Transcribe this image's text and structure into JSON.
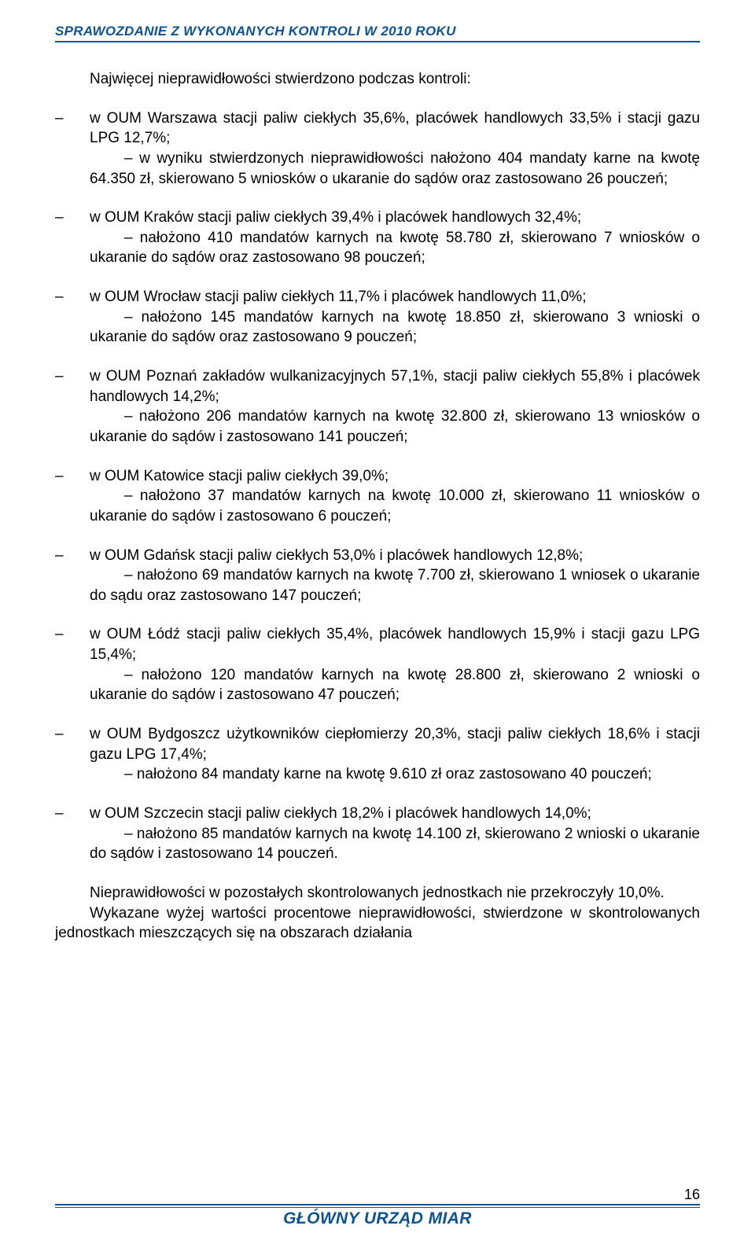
{
  "header": {
    "title": "SPRAWOZDANIE Z WYKONANYCH KONTROLI W 2010 ROKU"
  },
  "section_heading": "Najwięcej nieprawidłowości stwierdzono podczas kontroli:",
  "items": [
    {
      "main": "w OUM Warszawa  stacji paliw ciekłych 35,6%, placówek handlowych 33,5% i stacji gazu LPG 12,7%;",
      "sub": "– w wyniku stwierdzonych nieprawidłowości nałożono 404 mandaty karne na kwotę 64.350 zł, skierowano 5 wniosków o ukaranie do sądów oraz zastosowano 26 pouczeń;"
    },
    {
      "main": "w OUM Kraków  stacji paliw ciekłych 39,4% i placówek handlowych 32,4%;",
      "sub": "– nałożono 410 mandatów karnych na kwotę 58.780 zł, skierowano 7 wniosków o ukaranie do sądów oraz zastosowano 98 pouczeń;"
    },
    {
      "main": "w OUM Wrocław stacji paliw ciekłych 11,7% i placówek handlowych 11,0%;",
      "sub": "– nałożono 145 mandatów karnych na kwotę 18.850 zł, skierowano 3 wnioski o ukaranie do sądów oraz zastosowano 9 pouczeń;"
    },
    {
      "main": "w OUM Poznań zakładów wulkanizacyjnych 57,1%, stacji paliw ciekłych 55,8% i placówek handlowych 14,2%;",
      "sub": "– nałożono 206 mandatów karnych na kwotę 32.800 zł, skierowano 13 wniosków o ukaranie do sądów i zastosowano 141 pouczeń;"
    },
    {
      "main": "w OUM Katowice stacji paliw ciekłych 39,0%;",
      "sub": "– nałożono 37 mandatów karnych na kwotę 10.000 zł, skierowano 11 wniosków o ukaranie do sądów i zastosowano 6 pouczeń;"
    },
    {
      "main": "w OUM Gdańsk stacji paliw ciekłych 53,0% i placówek handlowych 12,8%;",
      "sub": "– nałożono 69 mandatów karnych na kwotę 7.700 zł, skierowano 1 wniosek o ukaranie do sądu oraz zastosowano 147 pouczeń;"
    },
    {
      "main": "w OUM Łódź stacji paliw ciekłych 35,4%, placówek handlowych 15,9% i stacji gazu LPG 15,4%;",
      "sub": "– nałożono 120 mandatów karnych na kwotę 28.800 zł, skierowano 2 wnioski o ukaranie do sądów i zastosowano 47 pouczeń;"
    },
    {
      "main": "w OUM Bydgoszcz użytkowników ciepłomierzy 20,3%, stacji paliw ciekłych 18,6% i stacji gazu LPG 17,4%;",
      "sub": "– nałożono 84 mandaty karne na kwotę 9.610 zł oraz zastosowano 40 pouczeń;"
    },
    {
      "main": "w OUM Szczecin stacji paliw ciekłych 18,2% i placówek handlowych 14,0%;",
      "sub": "– nałożono 85 mandatów karnych na kwotę 14.100 zł, skierowano 2 wnioski o ukaranie do sądów i zastosowano 14 pouczeń."
    }
  ],
  "closing": {
    "p1": "Nieprawidłowości w pozostałych skontrolowanych jednostkach nie przekroczyły 10,0%.",
    "p2": "Wykazane wyżej wartości procentowe nieprawidłowości, stwierdzone w skontrolowanych jednostkach mieszczących się na obszarach działania"
  },
  "footer": {
    "brand": "GŁÓWNY URZĄD MIAR",
    "page": "16"
  },
  "colors": {
    "accent": "#0b5394",
    "text": "#000000",
    "background": "#ffffff"
  }
}
